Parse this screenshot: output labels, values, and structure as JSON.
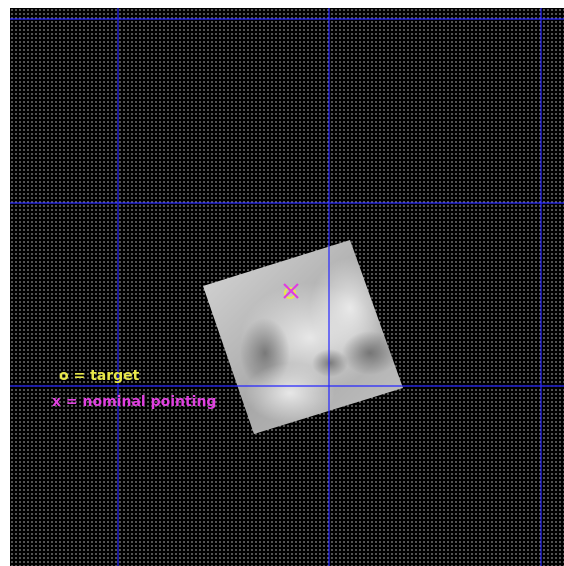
{
  "legend": {
    "target_label": "o = target",
    "nominal_label": "x = nominal pointing"
  },
  "colors": {
    "background": "#000000",
    "grid_lines": "#2626ff",
    "target_marker": "#e8e84a",
    "nominal_marker": "#e03ce0",
    "target_text": "#e8e84a",
    "nominal_text": "#e040e0"
  },
  "markers": {
    "target_symbol": "o",
    "nominal_symbol": "x"
  }
}
